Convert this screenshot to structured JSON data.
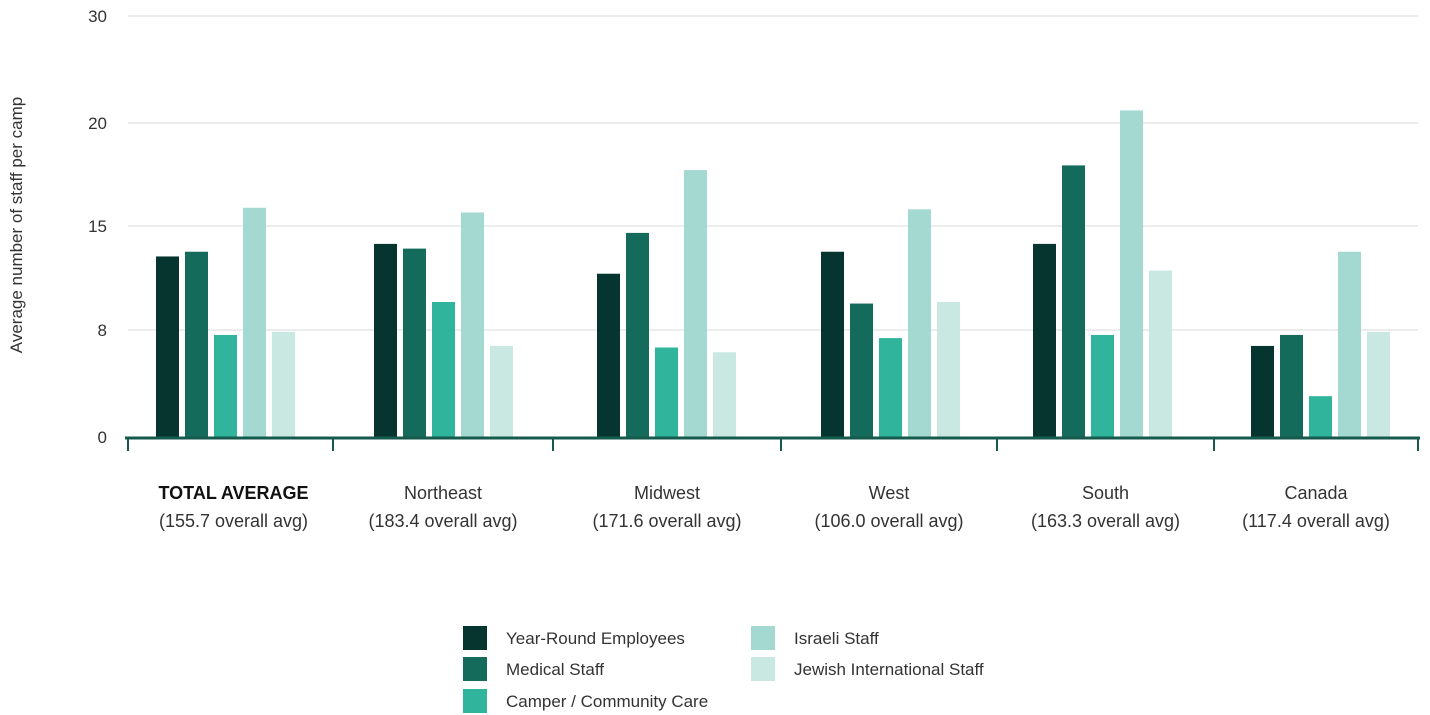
{
  "chart_data": {
    "type": "bar",
    "ylabel": "Average number of staff per camp",
    "y_ticks": [
      "0",
      "8",
      "15",
      "20",
      "30"
    ],
    "categories": [
      {
        "name": "TOTAL AVERAGE",
        "sub": "(155.7 overall avg)",
        "bold": true
      },
      {
        "name": "Northeast",
        "sub": "(183.4 overall avg)",
        "bold": false
      },
      {
        "name": "Midwest",
        "sub": "(171.6 overall avg)",
        "bold": false
      },
      {
        "name": "West",
        "sub": "(106.0 overall avg)",
        "bold": false
      },
      {
        "name": "South",
        "sub": "(163.3 overall avg)",
        "bold": false
      },
      {
        "name": "Canada",
        "sub": "(117.4 overall avg)",
        "bold": false
      }
    ],
    "series": [
      {
        "name": "Year-Round Employees",
        "color": "#06352f",
        "values": [
          11.5,
          12.3,
          10.4,
          11.8,
          12.3,
          5.8
        ]
      },
      {
        "name": "Medical Staff",
        "color": "#146b5c",
        "values": [
          11.8,
          12.0,
          13.0,
          8.5,
          17.3,
          6.5
        ]
      },
      {
        "name": "Camper / Community Care",
        "color": "#30b49b",
        "values": [
          6.5,
          8.6,
          5.7,
          6.3,
          6.5,
          2.6
        ]
      },
      {
        "name": "Israeli Staff",
        "color": "#a4d9d2",
        "values": [
          14.6,
          14.3,
          17.0,
          14.5,
          20.8,
          11.8
        ]
      },
      {
        "name": "Jewish International Staff",
        "color": "#c9e8e2",
        "values": [
          6.7,
          5.8,
          5.4,
          8.6,
          10.6,
          6.7
        ]
      }
    ],
    "grid": true,
    "legend_position": "bottom"
  }
}
